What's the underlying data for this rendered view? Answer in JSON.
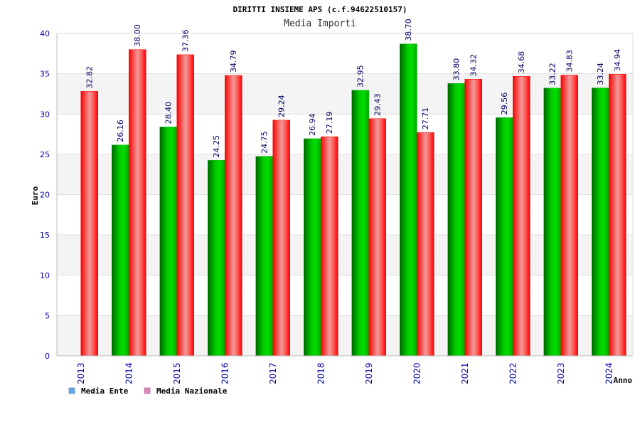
{
  "chart_data": {
    "type": "bar",
    "title": "DIRITTI INSIEME APS (c.f.94622510157)",
    "subtitle": "Media Importi",
    "ylabel": "Euro",
    "xlabel": "Anno",
    "ylim": [
      0,
      40
    ],
    "yticks": [
      0,
      5,
      10,
      15,
      20,
      25,
      30,
      35,
      40
    ],
    "categories": [
      "2013",
      "2014",
      "2015",
      "2016",
      "2017",
      "2018",
      "2019",
      "2020",
      "2021",
      "2022",
      "2023",
      "2024"
    ],
    "series": [
      {
        "name": "Media Ente",
        "color": "#00aa00",
        "legend_color": "#66aaee",
        "values": [
          null,
          26.16,
          28.4,
          24.25,
          24.75,
          26.94,
          32.95,
          38.7,
          33.8,
          29.56,
          33.22,
          33.24
        ],
        "labels": [
          "",
          "26.16",
          "28.40",
          "24.25",
          "24.75",
          "26.94",
          "32.95",
          "38.70",
          "33.80",
          "29.56",
          "33.22",
          "33.24"
        ]
      },
      {
        "name": "Media Nazionale",
        "color": "#ee1111",
        "legend_color": "#dd88bb",
        "values": [
          32.82,
          38.0,
          37.36,
          34.79,
          29.24,
          27.19,
          29.43,
          27.71,
          34.32,
          34.68,
          34.83,
          34.94
        ],
        "labels": [
          "32.82",
          "38.00",
          "37.36",
          "34.79",
          "29.24",
          "27.19",
          "29.43",
          "27.71",
          "34.32",
          "34.68",
          "34.83",
          "34.94"
        ]
      }
    ],
    "grid": true,
    "legend_position": "bottom-left"
  }
}
